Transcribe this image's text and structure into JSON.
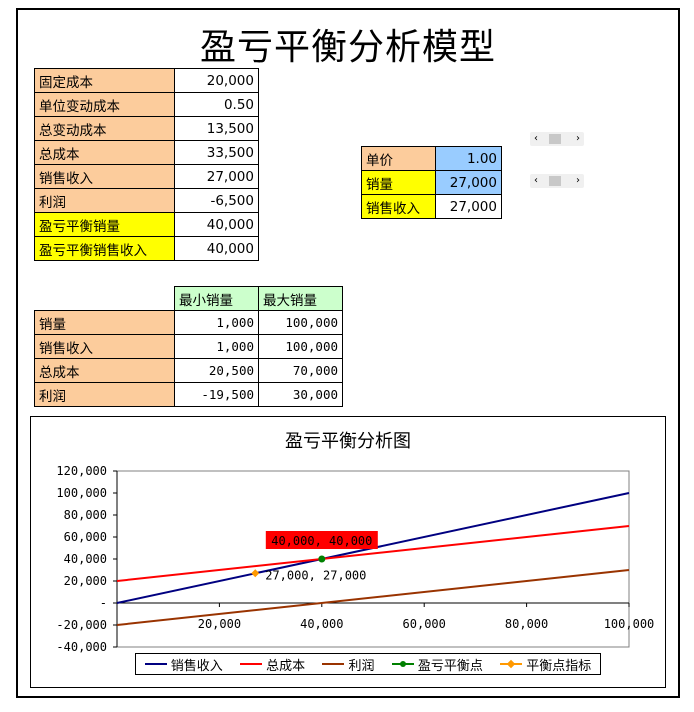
{
  "title": "盈亏平衡分析模型",
  "summary": [
    {
      "label": "固定成本",
      "value": "20,000",
      "style": "lbl"
    },
    {
      "label": "单位变动成本",
      "value": "0.50",
      "style": "lbl"
    },
    {
      "label": "总变动成本",
      "value": "13,500",
      "style": "lbl"
    },
    {
      "label": "总成本",
      "value": "33,500",
      "style": "lbl"
    },
    {
      "label": "销售收入",
      "value": "27,000",
      "style": "lbl"
    },
    {
      "label": "利润",
      "value": "-6,500",
      "style": "lbl"
    },
    {
      "label": "盈亏平衡销量",
      "value": "40,000",
      "style": "lbl-y"
    },
    {
      "label": "盈亏平衡销售收入",
      "value": "40,000",
      "style": "lbl-y"
    }
  ],
  "inputs": [
    {
      "label": "单价",
      "value": "1.00",
      "label_style": "lbl",
      "value_style": "val-b"
    },
    {
      "label": "销量",
      "value": "27,000",
      "label_style": "lbl-y",
      "value_style": "val-b"
    },
    {
      "label": "销售收入",
      "value": "27,000",
      "label_style": "lbl-y",
      "value_style": "val"
    }
  ],
  "scrollbars": {
    "left_arrow": "‹",
    "right_arrow": "›"
  },
  "range_table": {
    "headers": [
      "最小销量",
      "最大销量"
    ],
    "rows": [
      {
        "label": "销量",
        "min": "1,000",
        "max": "100,000"
      },
      {
        "label": "销售收入",
        "min": "1,000",
        "max": "100,000"
      },
      {
        "label": "总成本",
        "min": "20,500",
        "max": "70,000"
      },
      {
        "label": "利润",
        "min": "-19,500",
        "max": "30,000"
      }
    ]
  },
  "chart_data": {
    "type": "line",
    "title": "盈亏平衡分析图",
    "xlabel": "",
    "ylabel": "",
    "xlim": [
      0,
      100000
    ],
    "ylim": [
      -40000,
      120000
    ],
    "x_ticks": [
      "20,000",
      "40,000",
      "60,000",
      "80,000",
      "100,000"
    ],
    "x_tick_values": [
      20000,
      40000,
      60000,
      80000,
      100000
    ],
    "y_ticks": [
      "120,000",
      "100,000",
      "80,000",
      "60,000",
      "40,000",
      "20,000",
      "-",
      "-20,000",
      "-40,000"
    ],
    "y_tick_values": [
      120000,
      100000,
      80000,
      60000,
      40000,
      20000,
      0,
      -20000,
      -40000
    ],
    "grid": false,
    "legend_position": "bottom",
    "series": [
      {
        "name": "销售收入",
        "color": "#000080",
        "x": [
          0,
          100000
        ],
        "y": [
          0,
          100000
        ]
      },
      {
        "name": "总成本",
        "color": "#ff0000",
        "x": [
          0,
          100000
        ],
        "y": [
          20000,
          70000
        ]
      },
      {
        "name": "利润",
        "color": "#993300",
        "x": [
          0,
          100000
        ],
        "y": [
          -20000,
          30000
        ]
      },
      {
        "name": "盈亏平衡点",
        "color": "#008000",
        "marker": "circle",
        "x": [
          40000
        ],
        "y": [
          40000
        ]
      },
      {
        "name": "平衡点指标",
        "color": "#ff9900",
        "marker": "diamond",
        "x": [
          27000
        ],
        "y": [
          27000
        ]
      }
    ],
    "annotations": [
      {
        "text": "40,000, 40,000",
        "x": 40000,
        "y": 40000,
        "highlight": "#ff0000"
      },
      {
        "text": "27,000, 27,000",
        "x": 27000,
        "y": 27000,
        "highlight": ""
      }
    ]
  }
}
